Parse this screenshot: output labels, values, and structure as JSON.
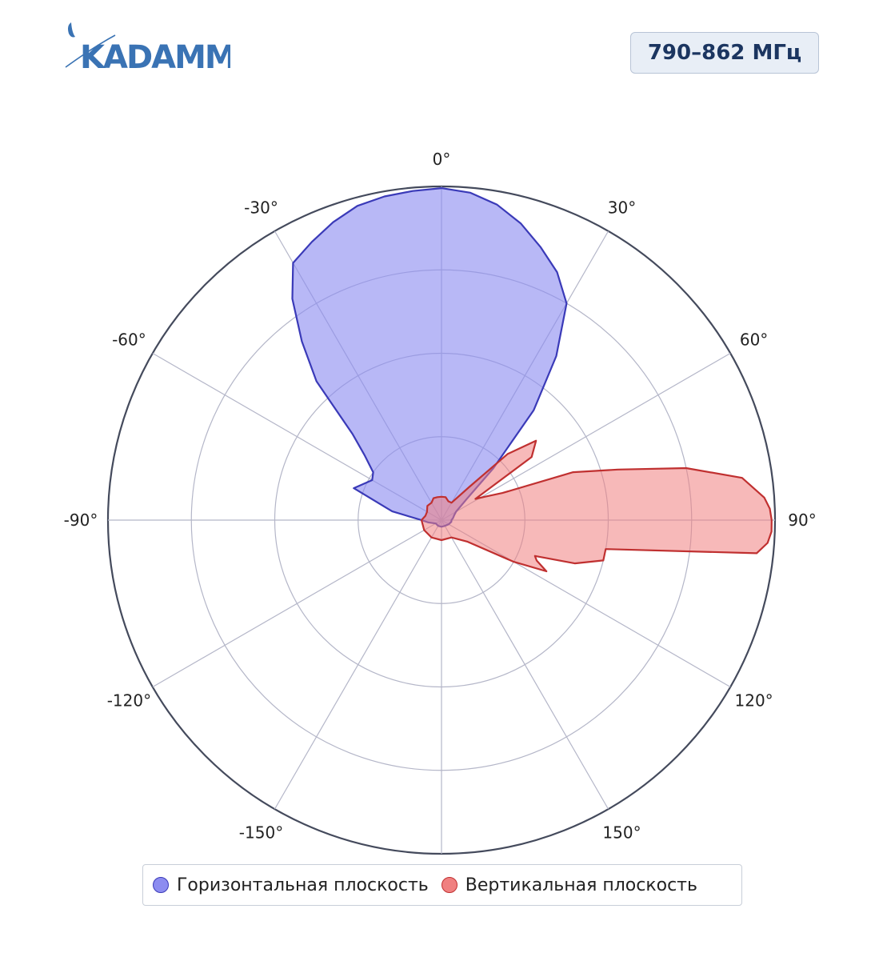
{
  "logo": {
    "text": "KADAMM",
    "color": "#3a73b4"
  },
  "badge": {
    "text": "790–862 МГц"
  },
  "chart_data": {
    "type": "polar-area",
    "title": "",
    "angular_axis": {
      "direction": "clockwise",
      "zero": "top",
      "tick_labels": [
        {
          "deg": 0,
          "text": "0°"
        },
        {
          "deg": 30,
          "text": "30°"
        },
        {
          "deg": 60,
          "text": "60°"
        },
        {
          "deg": 90,
          "text": "90°"
        },
        {
          "deg": 120,
          "text": "120°"
        },
        {
          "deg": 150,
          "text": "150°"
        },
        {
          "deg": 180,
          "text": ""
        },
        {
          "deg": -150,
          "text": "-150°"
        },
        {
          "deg": -120,
          "text": "-120°"
        },
        {
          "deg": -90,
          "text": "-90°"
        },
        {
          "deg": -60,
          "text": "-60°"
        },
        {
          "deg": -30,
          "text": "-30°"
        }
      ]
    },
    "radial_axis": {
      "range": [
        0,
        1
      ],
      "rings": [
        0.25,
        0.5,
        0.75,
        1.0
      ],
      "tick_labels_shown": false
    },
    "grid": true,
    "legend_position": "bottom",
    "series": [
      {
        "name": "Горизонтальная плоскость",
        "fill": "#8c8cf0",
        "fill_opacity": 0.62,
        "stroke": "#3a3ab8",
        "angles": [
          -180,
          -150,
          -120,
          -100,
          -90,
          -80,
          -70,
          -60,
          -55,
          -50,
          -46,
          -42,
          -38,
          -34,
          -30,
          -25,
          -20,
          -15,
          -10,
          -5,
          0,
          5,
          10,
          15,
          20,
          25,
          30,
          35,
          40,
          45,
          50,
          60,
          70,
          80,
          90,
          100,
          120,
          150,
          180
        ],
        "values": [
          0.02,
          0.02,
          0.02,
          0.04,
          0.06,
          0.15,
          0.28,
          0.24,
          0.25,
          0.3,
          0.37,
          0.56,
          0.68,
          0.8,
          0.89,
          0.92,
          0.95,
          0.975,
          0.985,
          0.99,
          0.995,
          0.985,
          0.96,
          0.92,
          0.87,
          0.82,
          0.75,
          0.6,
          0.43,
          0.22,
          0.1,
          0.05,
          0.04,
          0.035,
          0.03,
          0.03,
          0.025,
          0.02,
          0.02
        ]
      },
      {
        "name": "Вертикальная плоскость",
        "fill": "#f08080",
        "fill_opacity": 0.55,
        "stroke": "#c03030",
        "angles": [
          -180,
          -150,
          -120,
          -90,
          -75,
          -60,
          -45,
          -30,
          -20,
          -10,
          0,
          10,
          20,
          30,
          40,
          45,
          50,
          55,
          58,
          62,
          66,
          70,
          74,
          78,
          82,
          86,
          88,
          90,
          92,
          94,
          96,
          100,
          104,
          108,
          111,
          113,
          116,
          120,
          130,
          150,
          180
        ],
        "values": [
          0.06,
          0.06,
          0.06,
          0.06,
          0.05,
          0.05,
          0.06,
          0.06,
          0.07,
          0.07,
          0.07,
          0.07,
          0.06,
          0.06,
          0.13,
          0.28,
          0.37,
          0.33,
          0.12,
          0.15,
          0.2,
          0.42,
          0.55,
          0.75,
          0.91,
          0.97,
          0.985,
          0.99,
          0.99,
          0.98,
          0.95,
          0.5,
          0.5,
          0.42,
          0.3,
          0.31,
          0.35,
          0.25,
          0.1,
          0.06,
          0.06
        ]
      }
    ]
  }
}
